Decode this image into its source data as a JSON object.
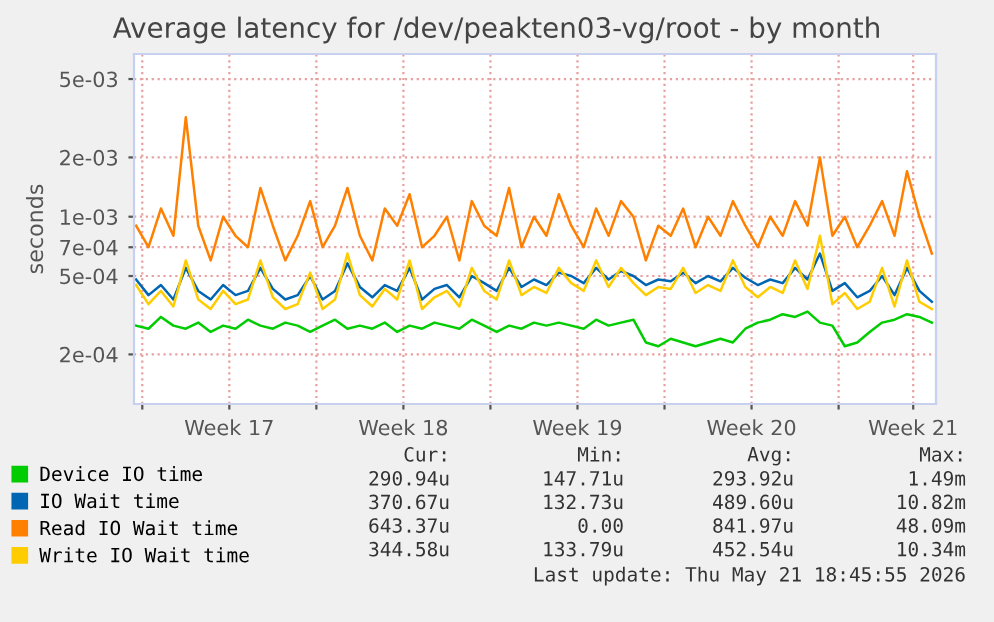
{
  "chart_data": {
    "type": "line",
    "title": "Average latency for /dev/peakten03-vg/root - by month",
    "ylabel": "seconds",
    "log": "y",
    "grid": true,
    "legend": "bottom",
    "marker": "none",
    "line_style": "solid",
    "xlim": [
      "2026-04-19T16:00",
      "2026-05-21T22:00"
    ],
    "xticks": [
      {
        "value": "2026-04-20",
        "label": null
      },
      {
        "value": "2026-04-23T12:00",
        "label": "Week 17"
      },
      {
        "value": "2026-04-27",
        "label": null
      },
      {
        "value": "2026-04-30T12:00",
        "label": "Week 18"
      },
      {
        "value": "2026-05-04",
        "label": null
      },
      {
        "value": "2026-05-07T12:00",
        "label": "Week 19"
      },
      {
        "value": "2026-05-11",
        "label": null
      },
      {
        "value": "2026-05-14T12:00",
        "label": "Week 20"
      },
      {
        "value": "2026-05-18",
        "label": null
      },
      {
        "value": "2026-05-21T00:00",
        "label": "Week 21"
      }
    ],
    "ylim": [
      0.000112,
      0.0067
    ],
    "yticks": [
      {
        "value": 0.0002,
        "label": "2e-04"
      },
      {
        "value": 0.0005,
        "label": "5e-04"
      },
      {
        "value": 0.0007,
        "label": "7e-04"
      },
      {
        "value": 0.001,
        "label": "1e-03"
      },
      {
        "value": 0.002,
        "label": "2e-03"
      },
      {
        "value": 0.005,
        "label": "5e-03"
      }
    ],
    "x": [
      "2026-04-19T18:00",
      "2026-04-20T06:00",
      "2026-04-20T18:00",
      "2026-04-21T06:00",
      "2026-04-21T18:00",
      "2026-04-22T06:00",
      "2026-04-22T18:00",
      "2026-04-23T06:00",
      "2026-04-23T18:00",
      "2026-04-24T06:00",
      "2026-04-24T18:00",
      "2026-04-25T06:00",
      "2026-04-25T18:00",
      "2026-04-26T06:00",
      "2026-04-26T18:00",
      "2026-04-27T06:00",
      "2026-04-27T18:00",
      "2026-04-28T06:00",
      "2026-04-28T18:00",
      "2026-04-29T06:00",
      "2026-04-29T18:00",
      "2026-04-30T06:00",
      "2026-04-30T18:00",
      "2026-05-01T06:00",
      "2026-05-01T18:00",
      "2026-05-02T06:00",
      "2026-05-02T18:00",
      "2026-05-03T06:00",
      "2026-05-03T18:00",
      "2026-05-04T06:00",
      "2026-05-04T18:00",
      "2026-05-05T06:00",
      "2026-05-05T18:00",
      "2026-05-06T06:00",
      "2026-05-06T18:00",
      "2026-05-07T06:00",
      "2026-05-07T18:00",
      "2026-05-08T06:00",
      "2026-05-08T18:00",
      "2026-05-09T06:00",
      "2026-05-09T18:00",
      "2026-05-10T06:00",
      "2026-05-10T18:00",
      "2026-05-11T06:00",
      "2026-05-11T18:00",
      "2026-05-12T06:00",
      "2026-05-12T18:00",
      "2026-05-13T06:00",
      "2026-05-13T18:00",
      "2026-05-14T06:00",
      "2026-05-14T18:00",
      "2026-05-15T06:00",
      "2026-05-15T18:00",
      "2026-05-16T06:00",
      "2026-05-16T18:00",
      "2026-05-17T06:00",
      "2026-05-17T18:00",
      "2026-05-18T06:00",
      "2026-05-18T18:00",
      "2026-05-19T06:00",
      "2026-05-19T18:00",
      "2026-05-20T06:00",
      "2026-05-20T18:00",
      "2026-05-21T06:00",
      "2026-05-21T18:00"
    ],
    "series": [
      {
        "name": "Read IO Wait time",
        "color": "#ff8000",
        "values": [
          0.0009,
          0.0007,
          0.0011,
          0.0008,
          0.0032,
          0.0009,
          0.0006,
          0.001,
          0.0008,
          0.0007,
          0.0014,
          0.0009,
          0.0006,
          0.0008,
          0.0012,
          0.0007,
          0.0009,
          0.0014,
          0.0008,
          0.0006,
          0.0011,
          0.0009,
          0.0013,
          0.0007,
          0.0008,
          0.001,
          0.0006,
          0.0012,
          0.0009,
          0.0008,
          0.0014,
          0.0007,
          0.001,
          0.0008,
          0.0013,
          0.0009,
          0.0007,
          0.0011,
          0.0008,
          0.0012,
          0.001,
          0.0006,
          0.0009,
          0.0008,
          0.0011,
          0.0007,
          0.001,
          0.0008,
          0.0012,
          0.0009,
          0.0007,
          0.001,
          0.0008,
          0.0012,
          0.0009,
          0.002,
          0.0008,
          0.001,
          0.0007,
          0.0009,
          0.0012,
          0.0008,
          0.0017,
          0.001,
          0.00065
        ]
      },
      {
        "name": "IO Wait time",
        "color": "#0066b3",
        "values": [
          0.00048,
          0.0004,
          0.00045,
          0.00038,
          0.00055,
          0.00042,
          0.00038,
          0.00045,
          0.0004,
          0.00042,
          0.00055,
          0.00043,
          0.00038,
          0.0004,
          0.0005,
          0.00038,
          0.00042,
          0.00058,
          0.00044,
          0.00039,
          0.00045,
          0.00042,
          0.00055,
          0.00038,
          0.00043,
          0.00045,
          0.00039,
          0.0005,
          0.00046,
          0.00042,
          0.00055,
          0.00044,
          0.00048,
          0.00045,
          0.00052,
          0.0005,
          0.00046,
          0.00055,
          0.00048,
          0.00053,
          0.0005,
          0.00045,
          0.00048,
          0.00047,
          0.00052,
          0.00046,
          0.0005,
          0.00047,
          0.00055,
          0.00049,
          0.00045,
          0.00048,
          0.00046,
          0.00055,
          0.00048,
          0.00065,
          0.00042,
          0.00046,
          0.00039,
          0.00042,
          0.0005,
          0.0004,
          0.00055,
          0.00042,
          0.00037
        ]
      },
      {
        "name": "Write IO Wait time",
        "color": "#ffcc00",
        "values": [
          0.00045,
          0.00036,
          0.00042,
          0.00035,
          0.0006,
          0.00038,
          0.00034,
          0.00042,
          0.00036,
          0.00038,
          0.0006,
          0.00039,
          0.00034,
          0.00036,
          0.00052,
          0.00034,
          0.00038,
          0.00065,
          0.0004,
          0.00035,
          0.00043,
          0.00038,
          0.0006,
          0.00034,
          0.00039,
          0.00042,
          0.00035,
          0.00055,
          0.00042,
          0.00038,
          0.0006,
          0.0004,
          0.00044,
          0.00041,
          0.00055,
          0.00046,
          0.00042,
          0.0006,
          0.00044,
          0.00055,
          0.00046,
          0.0004,
          0.00044,
          0.00043,
          0.00055,
          0.00041,
          0.00045,
          0.00042,
          0.0006,
          0.00044,
          0.00039,
          0.00044,
          0.00041,
          0.0006,
          0.00043,
          0.0008,
          0.00036,
          0.00041,
          0.00034,
          0.00037,
          0.00055,
          0.00035,
          0.0006,
          0.00037,
          0.00034
        ]
      },
      {
        "name": "Device IO time",
        "color": "#00cc00",
        "values": [
          0.00028,
          0.00027,
          0.00031,
          0.00028,
          0.00027,
          0.00029,
          0.00026,
          0.00028,
          0.00027,
          0.0003,
          0.00028,
          0.00027,
          0.00029,
          0.00028,
          0.00026,
          0.00028,
          0.0003,
          0.00027,
          0.00028,
          0.00027,
          0.00029,
          0.00026,
          0.00028,
          0.00027,
          0.00029,
          0.00028,
          0.00027,
          0.0003,
          0.00028,
          0.00026,
          0.00028,
          0.00027,
          0.00029,
          0.00028,
          0.00029,
          0.00028,
          0.00027,
          0.0003,
          0.00028,
          0.00029,
          0.0003,
          0.00023,
          0.00022,
          0.00024,
          0.00023,
          0.00022,
          0.00023,
          0.00024,
          0.00023,
          0.00027,
          0.00029,
          0.0003,
          0.00032,
          0.00031,
          0.00033,
          0.00029,
          0.00028,
          0.00022,
          0.00023,
          0.00026,
          0.00029,
          0.0003,
          0.00032,
          0.00031,
          0.00029
        ]
      }
    ],
    "annotations": [
      "Cur:",
      "Min:",
      "Avg:",
      "Max:",
      "290.94u",
      "147.71u",
      "293.92u",
      "1.49m",
      "370.67u",
      "132.73u",
      "489.60u",
      "10.82m",
      "643.37u",
      "0.00",
      "841.97u",
      "48.09m",
      "344.58u",
      "133.79u",
      "452.54u",
      "10.34m",
      "Last update: Thu May 21 18:45:55 2026"
    ]
  }
}
